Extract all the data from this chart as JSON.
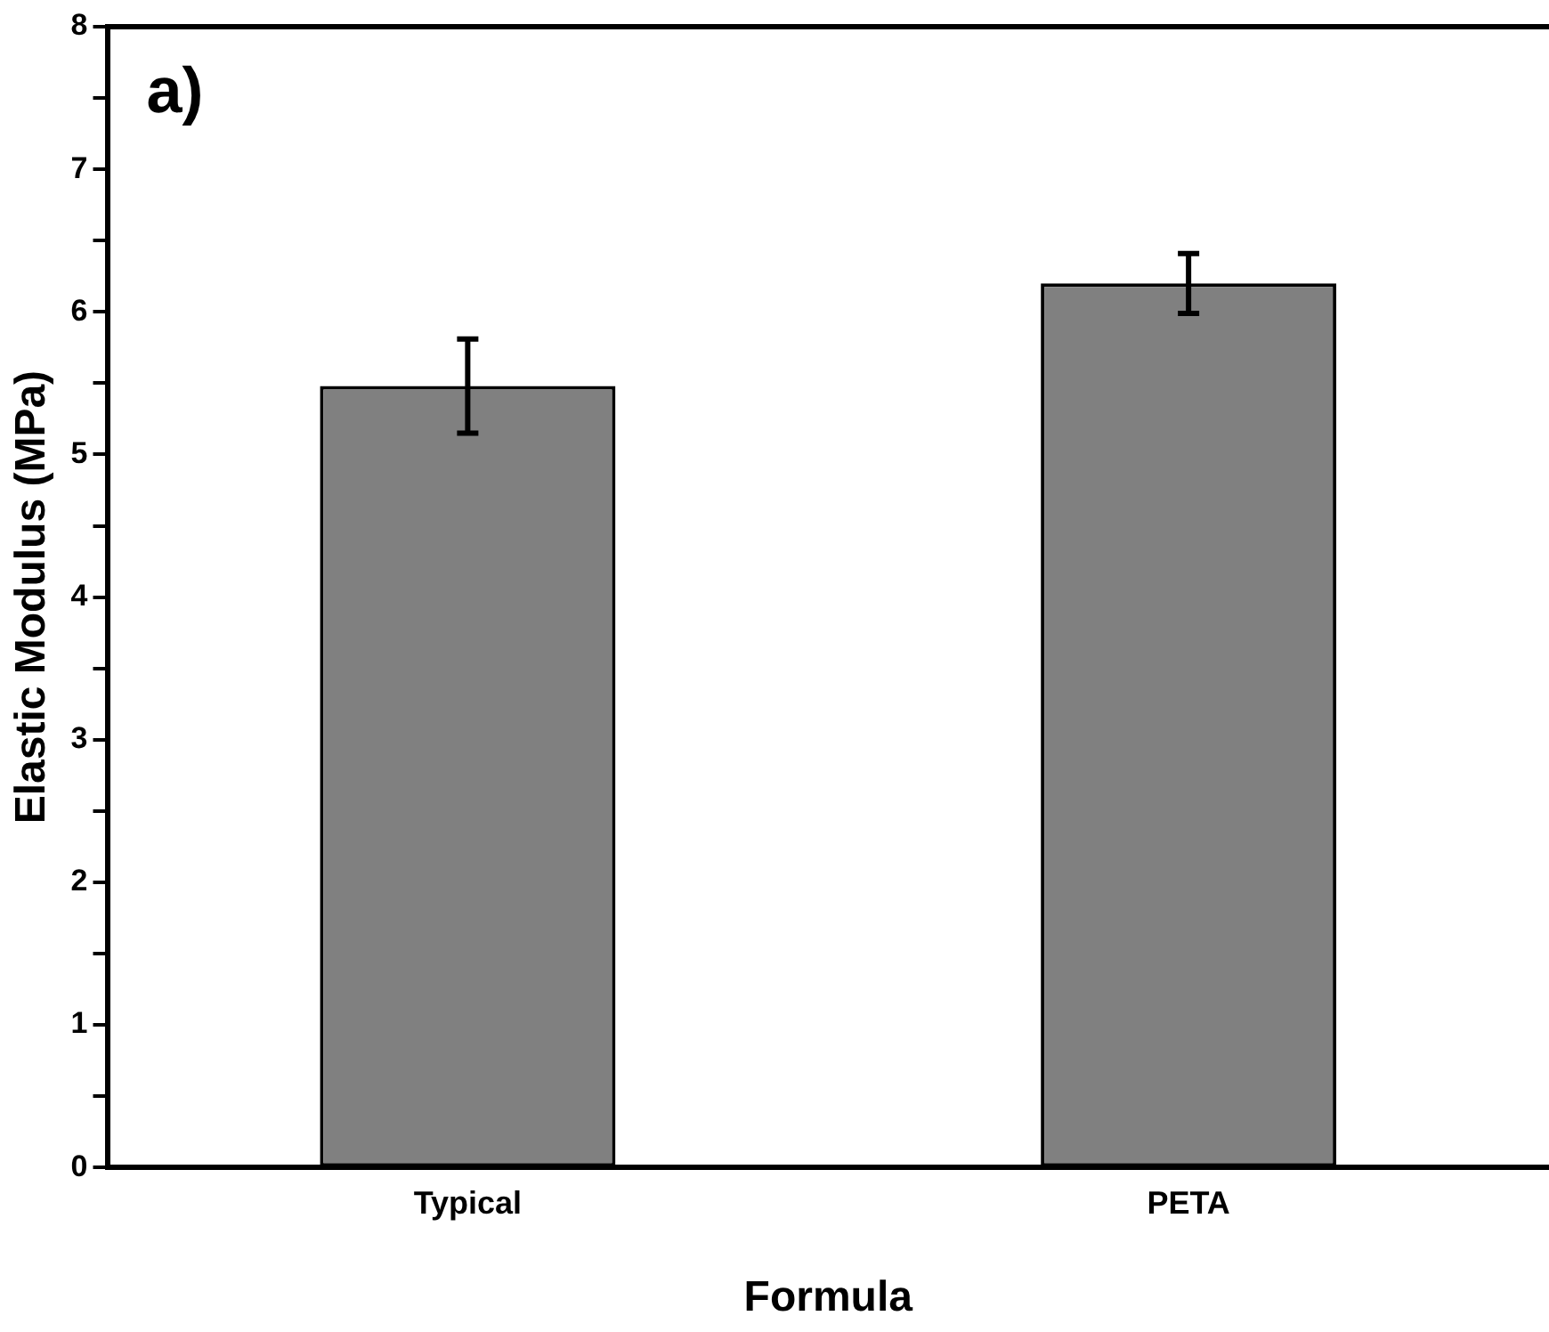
{
  "chart_data": {
    "type": "bar",
    "xlabel": "Formula",
    "ylabel": "Elastic Modulus (MPa)",
    "annotations": [
      "a)"
    ],
    "categories": [
      "Typical",
      "PETA"
    ],
    "values": [
      5.48,
      6.2
    ],
    "errors": [
      0.33,
      0.21
    ],
    "color": "#808080",
    "ylim": [
      0,
      8
    ],
    "yticks": [
      0,
      {
        "value": 0.5,
        "label": null
      },
      1,
      {
        "value": 1.5,
        "label": null
      },
      2,
      {
        "value": 2.5,
        "label": null
      },
      3,
      {
        "value": 3.5,
        "label": null
      },
      4,
      {
        "value": 4.5,
        "label": null
      },
      5,
      {
        "value": 5.5,
        "label": null
      },
      6,
      {
        "value": 6.5,
        "label": null
      },
      7,
      {
        "value": 7.5,
        "label": null
      },
      8
    ],
    "grid": false,
    "legend": false
  }
}
